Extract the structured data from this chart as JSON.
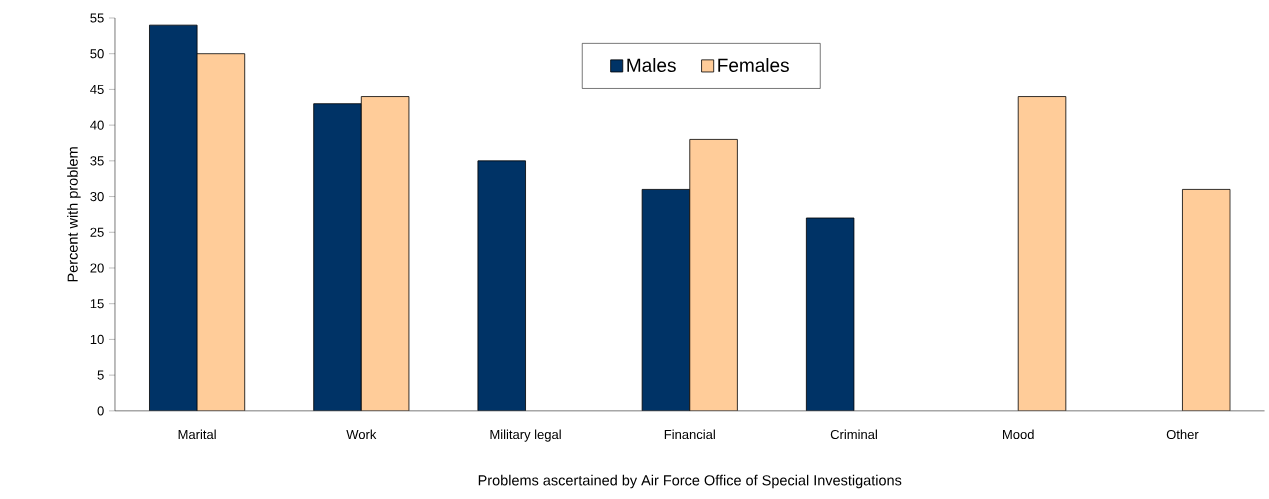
{
  "chart_data": {
    "type": "bar",
    "categories": [
      "Marital",
      "Work",
      "Military legal",
      "Financial",
      "Criminal",
      "Mood",
      "Other"
    ],
    "series": [
      {
        "name": "Males",
        "color": "#003366",
        "values": [
          54,
          43,
          35,
          31,
          27,
          null,
          null
        ]
      },
      {
        "name": "Females",
        "color": "#ffcc99",
        "values": [
          50,
          44,
          null,
          38,
          null,
          44,
          31
        ]
      }
    ],
    "xlabel": "Problems ascertained by Air Force Office of Special Investigations",
    "ylabel": "Percent with problem",
    "ylim": [
      0,
      55
    ],
    "yticks": [
      0,
      5,
      10,
      15,
      20,
      25,
      30,
      35,
      40,
      45,
      50,
      55
    ],
    "legend": "top"
  }
}
